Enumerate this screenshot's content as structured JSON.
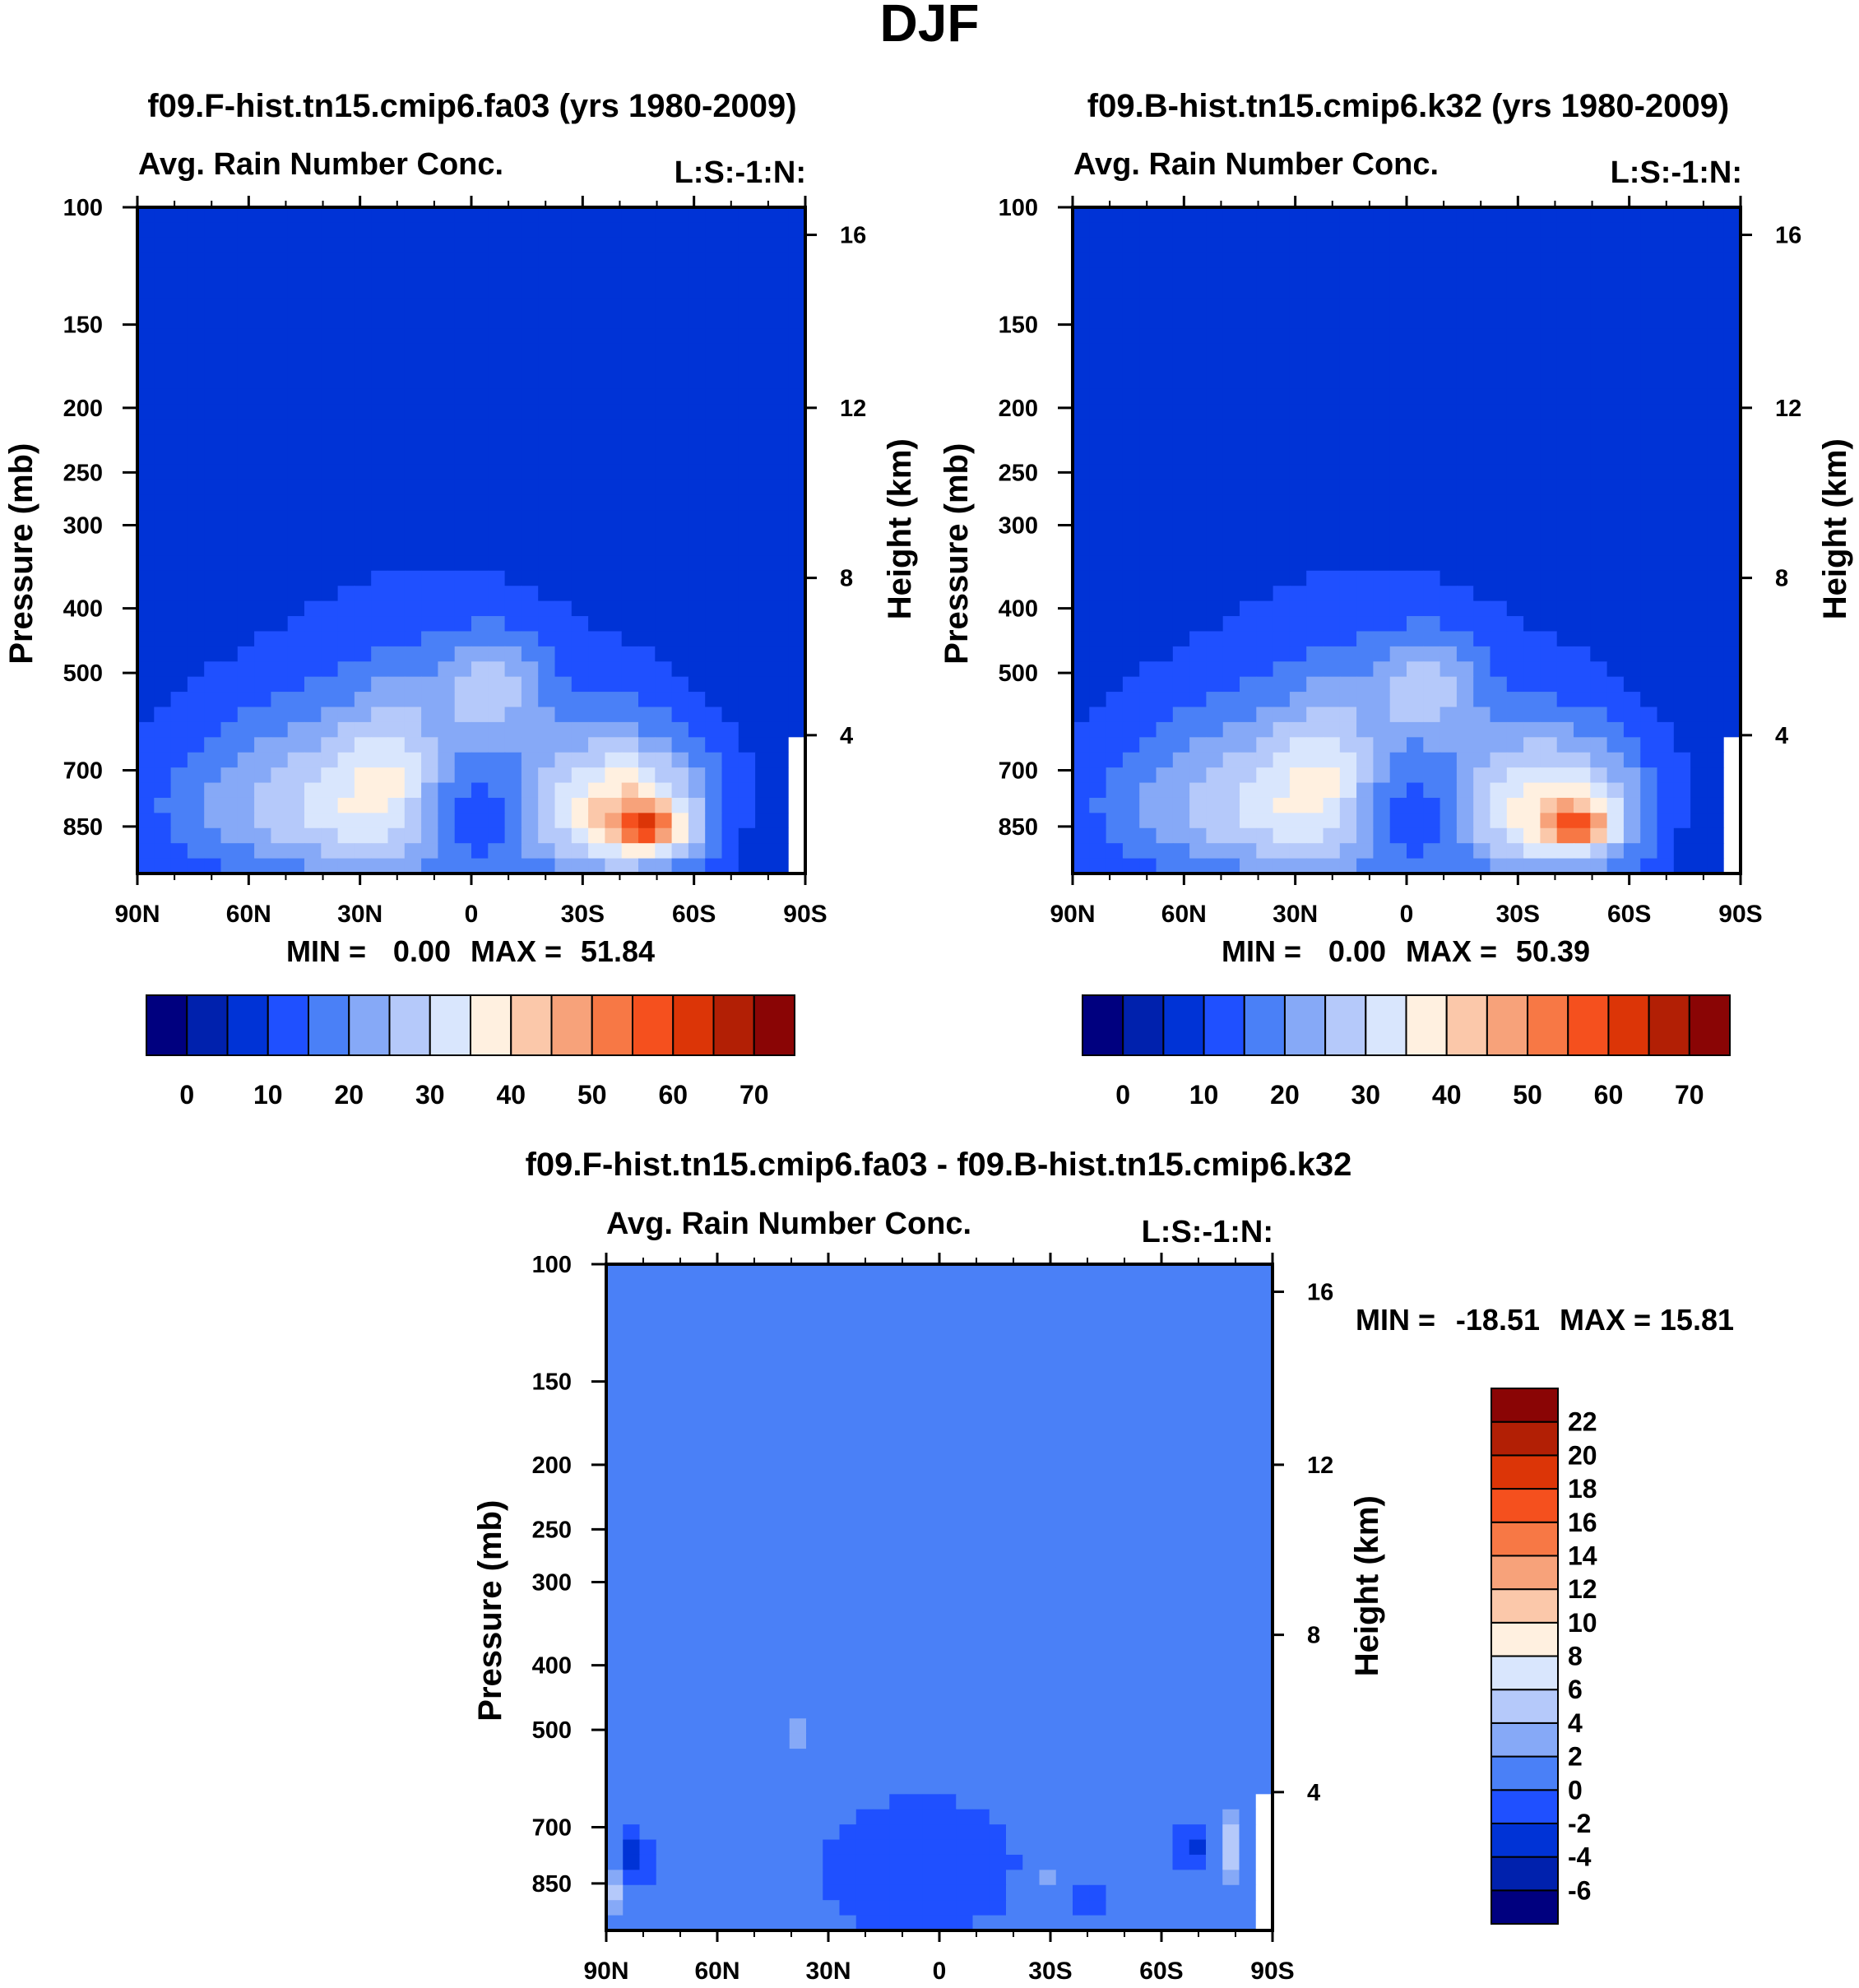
{
  "chart_data": {
    "title": "DJF",
    "panels": [
      {
        "type": "heatmap",
        "run_title": "f09.F-hist.tn15.cmip6.fa03 (yrs 1980-2009)",
        "left_string": "Avg. Rain Number Conc.",
        "right_string": "L:S:-1:N:",
        "ylabel": "Pressure (mb)",
        "ylabel_right": "Height (km)",
        "x_ticks": [
          "90N",
          "60N",
          "30N",
          "0",
          "30S",
          "60S",
          "90S"
        ],
        "pressure_ticks": [
          "100",
          "150",
          "200",
          "250",
          "300",
          "400",
          "500",
          "700",
          "850"
        ],
        "height_ticks": [
          "16",
          "12",
          "8",
          "4"
        ],
        "ylim": [
          100,
          1000
        ],
        "min_label": "MIN =",
        "min_value": "0.00",
        "max_label": "MAX =",
        "max_value": "51.84",
        "field": {
          "background": 2,
          "blobs": [
            {
              "lat": 10,
              "p": 780,
              "a": 48,
              "b": 280,
              "v": 4.6
            },
            {
              "lat": 52,
              "p": 790,
              "a": 40,
              "b": 200,
              "v": 2.0
            },
            {
              "lat": 22,
              "p": 700,
              "a": 12,
              "b": 200,
              "v": 1.3
            },
            {
              "lat": -5,
              "p": 520,
              "a": 14,
              "b": 90,
              "v": 2.6
            },
            {
              "lat": 0,
              "p": 800,
              "a": 18,
              "b": 170,
              "v": -3.8
            },
            {
              "lat": -43,
              "p": 810,
              "a": 22,
              "b": 190,
              "v": 5.5
            },
            {
              "lat": -48,
              "p": 850,
              "a": 9,
              "b": 60,
              "v": 5.2
            },
            {
              "lat": -80,
              "p": 880,
              "a": 8,
              "b": 150,
              "v": -0.6
            }
          ],
          "cutoff_lat": -85
        },
        "colorbar": {
          "orientation": "horizontal",
          "colors": [
            "#00007f",
            "#0021ad",
            "#0033d6",
            "#1f50ff",
            "#4a80f7",
            "#86a9f7",
            "#b5c9fa",
            "#d9e6fd",
            "#fff0e0",
            "#fbc8aa",
            "#f7a27a",
            "#f77845",
            "#f5501e",
            "#dc3507",
            "#b21f05",
            "#8a0505"
          ],
          "labels": [
            "0",
            "10",
            "20",
            "30",
            "40",
            "50",
            "60",
            "70"
          ]
        }
      },
      {
        "type": "heatmap",
        "run_title": "f09.B-hist.tn15.cmip6.k32 (yrs 1980-2009)",
        "left_string": "Avg. Rain Number Conc.",
        "right_string": "L:S:-1:N:",
        "ylabel": "Pressure (mb)",
        "ylabel_right": "Height (km)",
        "x_ticks": [
          "90N",
          "60N",
          "30N",
          "0",
          "30S",
          "60S",
          "90S"
        ],
        "pressure_ticks": [
          "100",
          "150",
          "200",
          "250",
          "300",
          "400",
          "500",
          "700",
          "850"
        ],
        "height_ticks": [
          "16",
          "12",
          "8",
          "4"
        ],
        "ylim": [
          100,
          1000
        ],
        "min_label": "MIN =",
        "min_value": "0.00",
        "max_label": "MAX =",
        "max_value": "50.39",
        "field": {
          "background": 2,
          "blobs": [
            {
              "lat": 10,
              "p": 780,
              "a": 48,
              "b": 280,
              "v": 4.6
            },
            {
              "lat": 52,
              "p": 790,
              "a": 40,
              "b": 200,
              "v": 2.0
            },
            {
              "lat": 22,
              "p": 700,
              "a": 12,
              "b": 200,
              "v": 1.3
            },
            {
              "lat": -5,
              "p": 520,
              "a": 14,
              "b": 90,
              "v": 2.6
            },
            {
              "lat": 0,
              "p": 800,
              "a": 18,
              "b": 170,
              "v": -3.8
            },
            {
              "lat": -43,
              "p": 810,
              "a": 22,
              "b": 190,
              "v": 5.2
            },
            {
              "lat": -47,
              "p": 850,
              "a": 8,
              "b": 55,
              "v": 4.6
            },
            {
              "lat": -80,
              "p": 880,
              "a": 8,
              "b": 150,
              "v": -0.6
            }
          ],
          "cutoff_lat": -85
        },
        "colorbar": {
          "orientation": "horizontal",
          "colors": [
            "#00007f",
            "#0021ad",
            "#0033d6",
            "#1f50ff",
            "#4a80f7",
            "#86a9f7",
            "#b5c9fa",
            "#d9e6fd",
            "#fff0e0",
            "#fbc8aa",
            "#f7a27a",
            "#f77845",
            "#f5501e",
            "#dc3507",
            "#b21f05",
            "#8a0505"
          ],
          "labels": [
            "0",
            "10",
            "20",
            "30",
            "40",
            "50",
            "60",
            "70"
          ]
        }
      },
      {
        "type": "heatmap",
        "run_title": "f09.F-hist.tn15.cmip6.fa03 - f09.B-hist.tn15.cmip6.k32",
        "left_string": "Avg. Rain Number Conc.",
        "right_string": "L:S:-1:N:",
        "ylabel": "Pressure (mb)",
        "ylabel_right": "Height (km)",
        "x_ticks": [
          "90N",
          "60N",
          "30N",
          "0",
          "30S",
          "60S",
          "90S"
        ],
        "pressure_ticks": [
          "100",
          "150",
          "200",
          "250",
          "300",
          "400",
          "500",
          "700",
          "850"
        ],
        "height_ticks": [
          "16",
          "12",
          "8",
          "4"
        ],
        "ylim": [
          100,
          1000
        ],
        "min_label": "MIN =",
        "min_value": "-18.51",
        "max_label": "MAX =",
        "max_value": "15.81",
        "field": {
          "background": 4,
          "blobs": [
            {
              "lat": 5,
              "p": 820,
              "a": 32,
              "b": 230,
              "v": -1.0
            },
            {
              "lat": -30,
              "p": 850,
              "a": 6,
              "b": 60,
              "v": 1.0
            },
            {
              "lat": 40,
              "p": 500,
              "a": 3,
              "b": 45,
              "v": 1.0
            },
            {
              "lat": 82,
              "p": 780,
              "a": 4,
              "b": 60,
              "v": -2.5
            },
            {
              "lat": -68,
              "p": 760,
              "a": 3,
              "b": 60,
              "v": -2.5
            },
            {
              "lat": -78,
              "p": 760,
              "a": 2.5,
              "b": 80,
              "v": 2.5
            },
            {
              "lat": 88,
              "p": 880,
              "a": 2,
              "b": 50,
              "v": 2.5
            },
            {
              "lat": -40,
              "p": 900,
              "a": 8,
              "b": 50,
              "v": -1.0
            }
          ],
          "cutoff_lat": -85
        },
        "colorbar": {
          "orientation": "vertical",
          "colors": [
            "#00007f",
            "#0021ad",
            "#0033d6",
            "#1f50ff",
            "#4a80f7",
            "#86a9f7",
            "#b5c9fa",
            "#d9e6fd",
            "#fff0e0",
            "#fbc8aa",
            "#f7a27a",
            "#f77845",
            "#f5501e",
            "#dc3507",
            "#b21f05",
            "#8a0505"
          ],
          "labels": [
            "-6",
            "-4",
            "-2",
            "0",
            "2",
            "4",
            "6",
            "8",
            "10",
            "12",
            "14",
            "16",
            "18",
            "20",
            "22"
          ]
        }
      }
    ]
  }
}
